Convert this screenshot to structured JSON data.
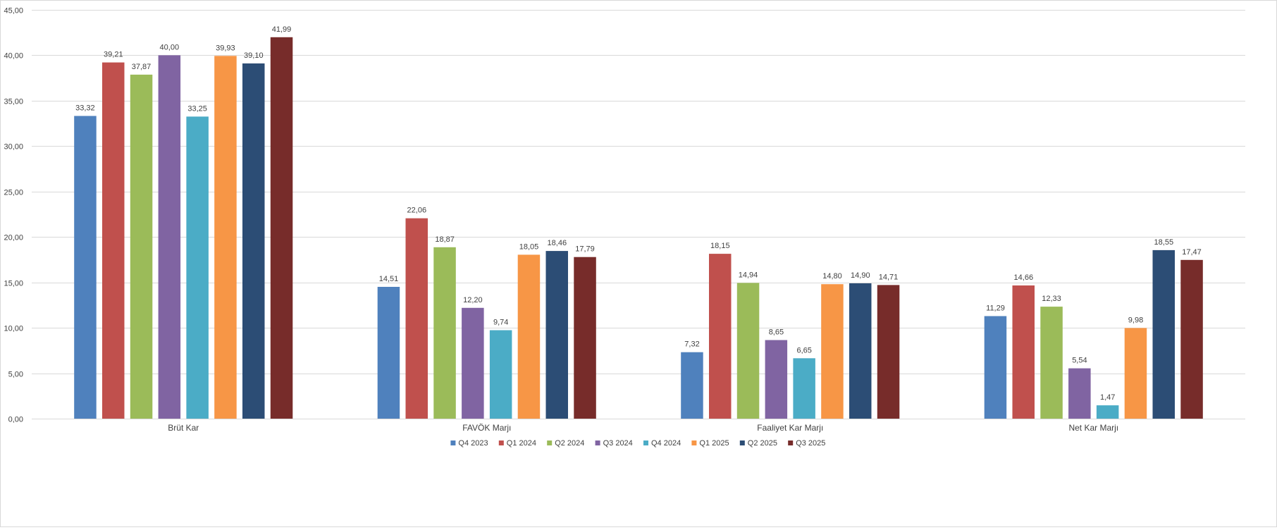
{
  "chart_data": {
    "type": "bar",
    "title": "",
    "xlabel": "",
    "ylabel": "",
    "categories": [
      "Brüt Kar",
      "FAVÖK Marjı",
      "Faaliyet Kar Marjı",
      "Net Kar Marjı"
    ],
    "series": [
      {
        "name": "Q4 2023",
        "color": "#4F81BD",
        "values": [
          33.32,
          14.51,
          7.32,
          11.29
        ]
      },
      {
        "name": "Q1 2024",
        "color": "#C0504D",
        "values": [
          39.21,
          22.06,
          18.15,
          14.66
        ]
      },
      {
        "name": "Q2 2024",
        "color": "#9BBB59",
        "values": [
          37.87,
          18.87,
          14.94,
          12.33
        ]
      },
      {
        "name": "Q3 2024",
        "color": "#8064A2",
        "values": [
          40.0,
          12.2,
          8.65,
          5.54
        ]
      },
      {
        "name": "Q4 2024",
        "color": "#4BACC6",
        "values": [
          33.25,
          9.74,
          6.65,
          1.47
        ]
      },
      {
        "name": "Q1 2025",
        "color": "#F79646",
        "values": [
          39.93,
          18.05,
          14.8,
          9.98
        ]
      },
      {
        "name": "Q2 2025",
        "color": "#2C4D75",
        "values": [
          39.1,
          18.46,
          14.9,
          18.55
        ]
      },
      {
        "name": "Q3 2025",
        "color": "#772C2A",
        "values": [
          41.99,
          17.79,
          14.71,
          17.47
        ]
      }
    ],
    "ylim": [
      0,
      45
    ],
    "yticks": [
      0,
      5,
      10,
      15,
      20,
      25,
      30,
      35,
      40,
      45
    ],
    "ytick_labels": [
      "0,00",
      "5,00",
      "10,00",
      "15,00",
      "20,00",
      "25,00",
      "30,00",
      "35,00",
      "40,00",
      "45,00"
    ],
    "data_labels": [
      [
        "33,32",
        "14,51",
        "7,32",
        "11,29"
      ],
      [
        "39,21",
        "22,06",
        "18,15",
        "14,66"
      ],
      [
        "37,87",
        "18,87",
        "14,94",
        "12,33"
      ],
      [
        "40,00",
        "12,20",
        "8,65",
        "5,54"
      ],
      [
        "33,25",
        "9,74",
        "6,65",
        "1,47"
      ],
      [
        "39,93",
        "18,05",
        "14,80",
        "9,98"
      ],
      [
        "39,10",
        "18,46",
        "14,90",
        "18,55"
      ],
      [
        "41,99",
        "17,79",
        "14,71",
        "17,47"
      ]
    ],
    "grid": true,
    "legend_position": "bottom",
    "gridline_color": "#d9d9d9",
    "text_color": "#404040"
  }
}
